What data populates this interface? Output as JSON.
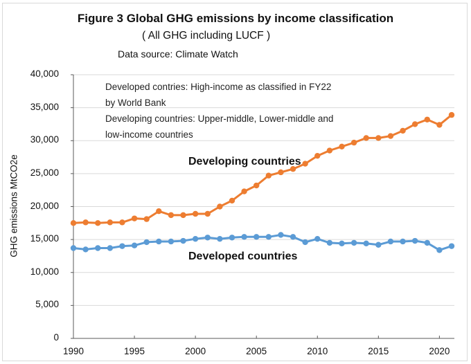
{
  "chart_data": {
    "type": "line",
    "title": "Figure 3  Global GHG emissions by income classification",
    "subtitle": "( All GHG including LUCF )",
    "source": "Data source: Climate Watch",
    "notes": [
      "Developed contries: High-income as classified in FY22",
      "by World Bank",
      "Developing countries: Upper-middle, Lower-middle and",
      "low-income countries"
    ],
    "xlabel": "",
    "ylabel": "GHG emissions  MtCO2e",
    "xlim": [
      1990,
      2021
    ],
    "ylim": [
      0,
      40000
    ],
    "grid": true,
    "legend": "inline labels",
    "xticks": [
      "1990",
      "1995",
      "2000",
      "2005",
      "2010",
      "2015",
      "2020"
    ],
    "yticks": [
      "0",
      "5,000",
      "10,000",
      "15,000",
      "20,000",
      "25,000",
      "30,000",
      "35,000",
      "40,000"
    ],
    "x": [
      1990,
      1991,
      1992,
      1993,
      1994,
      1995,
      1996,
      1997,
      1998,
      1999,
      2000,
      2001,
      2002,
      2003,
      2004,
      2005,
      2006,
      2007,
      2008,
      2009,
      2010,
      2011,
      2012,
      2013,
      2014,
      2015,
      2016,
      2017,
      2018,
      2019,
      2020,
      2021
    ],
    "series": [
      {
        "name": "Developing countries",
        "color": "#ed7d31",
        "values": [
          17500,
          17600,
          17500,
          17600,
          17600,
          18200,
          18100,
          19300,
          18700,
          18700,
          18900,
          18900,
          20000,
          20900,
          22300,
          23200,
          24700,
          25200,
          25700,
          26500,
          27700,
          28500,
          29100,
          29700,
          30400,
          30400,
          30700,
          31500,
          32500,
          33200,
          32400,
          33900
        ]
      },
      {
        "name": "Developed countries",
        "color": "#5b9bd5",
        "values": [
          13700,
          13500,
          13700,
          13700,
          14000,
          14100,
          14600,
          14700,
          14700,
          14800,
          15100,
          15300,
          15100,
          15300,
          15400,
          15400,
          15400,
          15700,
          15400,
          14600,
          15100,
          14500,
          14400,
          14500,
          14400,
          14200,
          14700,
          14700,
          14800,
          14500,
          13400,
          14000
        ]
      }
    ]
  }
}
